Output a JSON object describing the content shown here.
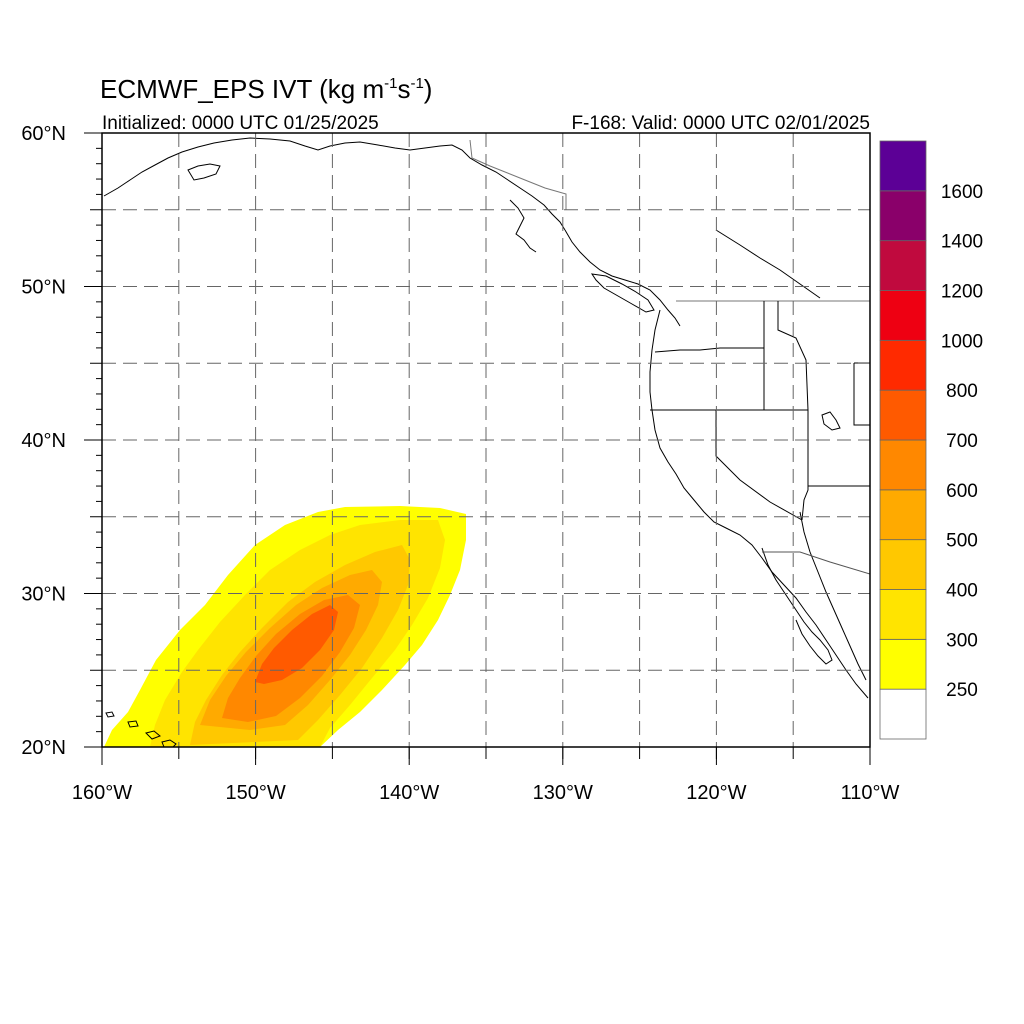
{
  "title": {
    "prefix": "ECMWF_EPS IVT (kg m",
    "exp1": "-1",
    "mid": "s",
    "exp2": "-1",
    "suffix": ")"
  },
  "subtitle_left": "Initialized: 0000 UTC 01/25/2025",
  "subtitle_right": "F-168: Valid: 0000 UTC 02/01/2025",
  "map": {
    "lon_range": [
      -160,
      -110
    ],
    "lat_range": [
      20,
      60
    ],
    "lon_ticks": [
      {
        "value": -160,
        "label": "160°W"
      },
      {
        "value": -150,
        "label": "150°W"
      },
      {
        "value": -140,
        "label": "140°W"
      },
      {
        "value": -130,
        "label": "130°W"
      },
      {
        "value": -120,
        "label": "120°W"
      },
      {
        "value": -110,
        "label": "110°W"
      }
    ],
    "lat_ticks": [
      {
        "value": 20,
        "label": "20°N"
      },
      {
        "value": 30,
        "label": "30°N"
      },
      {
        "value": 40,
        "label": "40°N"
      },
      {
        "value": 50,
        "label": "50°N"
      },
      {
        "value": 60,
        "label": "60°N"
      }
    ],
    "grid_lon": [
      -155,
      -150,
      -145,
      -140,
      -135,
      -130,
      -125,
      -120,
      -115
    ],
    "grid_lat": [
      25,
      30,
      35,
      40,
      45,
      50,
      55
    ],
    "grid_style": "dashed"
  },
  "colorbar": {
    "labels": [
      "250",
      "300",
      "400",
      "500",
      "600",
      "700",
      "800",
      "1000",
      "1200",
      "1400",
      "1600"
    ],
    "colors": [
      "#ffffff",
      "#ffff00",
      "#ffe400",
      "#ffc800",
      "#ffaa00",
      "#ff8800",
      "#ff5a00",
      "#ff2a00",
      "#ee0012",
      "#c00a3e",
      "#8a006a",
      "#5c0096"
    ]
  },
  "ivt_field": {
    "description": "Atmospheric river plume northeast of Hawaii",
    "core_value_range": [
      "700",
      "800"
    ],
    "colors": {
      "c250": "#ffff00",
      "c300": "#ffe400",
      "c400": "#ffc800",
      "c500": "#ffaa00",
      "c600": "#ff8800",
      "c700": "#ff5a00"
    }
  }
}
